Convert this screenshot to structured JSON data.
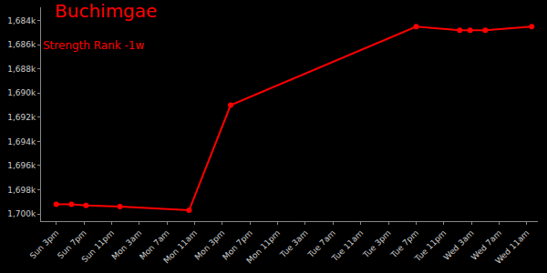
{
  "chart_data": {
    "type": "line",
    "title": "Buchimgae",
    "subtitle": "Strength Rank -1w",
    "color": "#ff0000",
    "marker": "circle",
    "line_style": "solid",
    "grid": false,
    "x": [
      15,
      17.2,
      19.3,
      24.2,
      34.2,
      40.2,
      67,
      73.3,
      74.8,
      77,
      83.7
    ],
    "values": [
      1699200,
      1699200,
      1699300,
      1699400,
      1699700,
      1691000,
      1684500,
      1684800,
      1684800,
      1684800,
      1684500
    ],
    "xlim": [
      12.8,
      84.6
    ],
    "xticks": [
      {
        "value": 15,
        "label": "Sun 3pm"
      },
      {
        "value": 19,
        "label": "Sun 7pm"
      },
      {
        "value": 23,
        "label": "Sun 11pm"
      },
      {
        "value": 27,
        "label": "Mon 3am"
      },
      {
        "value": 31,
        "label": "Mon 7am"
      },
      {
        "value": 35,
        "label": "Mon 11am"
      },
      {
        "value": 39,
        "label": "Mon 3pm"
      },
      {
        "value": 43,
        "label": "Mon 7pm"
      },
      {
        "value": 47,
        "label": "Mon 11pm"
      },
      {
        "value": 51,
        "label": "Tue 3am"
      },
      {
        "value": 55,
        "label": "Tue 7am"
      },
      {
        "value": 59,
        "label": "Tue 11am"
      },
      {
        "value": 63,
        "label": "Tue 3pm"
      },
      {
        "value": 67,
        "label": "Tue 7pm"
      },
      {
        "value": 71,
        "label": "Tue 11pm"
      },
      {
        "value": 75,
        "label": "Wed 3am"
      },
      {
        "value": 79,
        "label": "Wed 7am"
      },
      {
        "value": 83,
        "label": "Wed 11am"
      }
    ],
    "ylim": [
      1700600,
      1682900
    ],
    "yticks": [
      {
        "value": 1684000,
        "label": "1,684k"
      },
      {
        "value": 1686000,
        "label": "1,686k"
      },
      {
        "value": 1688000,
        "label": "1,688k"
      },
      {
        "value": 1690000,
        "label": "1,690k"
      },
      {
        "value": 1692000,
        "label": "1,692k"
      },
      {
        "value": 1694000,
        "label": "1,694k"
      },
      {
        "value": 1696000,
        "label": "1,696k"
      },
      {
        "value": 1698000,
        "label": "1,698k"
      },
      {
        "value": 1700000,
        "label": "1,700k"
      }
    ]
  }
}
